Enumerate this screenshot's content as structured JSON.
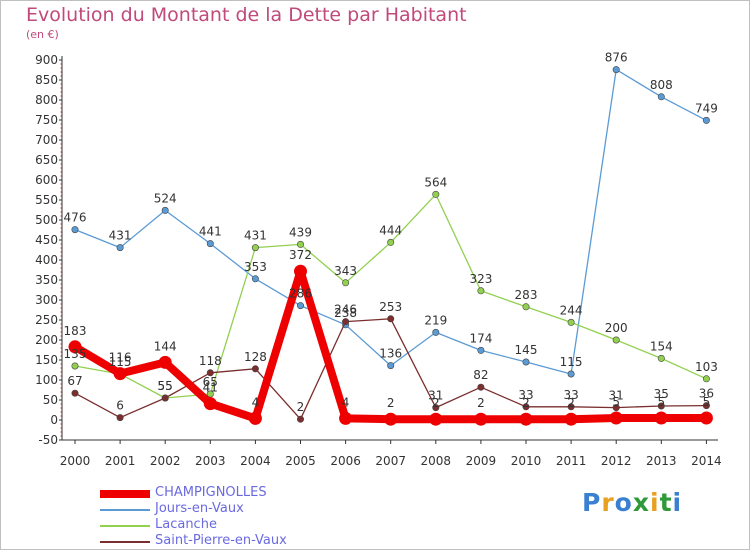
{
  "header": {
    "title": "Evolution du Montant de la Dette par Habitant",
    "subtitle": "(en €)"
  },
  "logo": {
    "text": "Proxiti",
    "colors": [
      "#3a7fd0",
      "#e8a020",
      "#3a7fd0",
      "#2f9a3a",
      "#e8a020",
      "#2f9a3a",
      "#3a7fd0"
    ]
  },
  "chart_data": {
    "type": "line",
    "categories": [
      "2000",
      "2001",
      "2002",
      "2003",
      "2004",
      "2005",
      "2006",
      "2007",
      "2008",
      "2009",
      "2010",
      "2011",
      "2012",
      "2013",
      "2014"
    ],
    "ylim": [
      -50,
      900
    ],
    "yticks": [
      -50,
      0,
      50,
      100,
      150,
      200,
      250,
      300,
      350,
      400,
      450,
      500,
      550,
      600,
      650,
      700,
      750,
      800,
      850,
      900
    ],
    "grid": "none",
    "legend_position": "bottom-left",
    "series": [
      {
        "name": "Jours-en-Vaux",
        "color": "#5b9bd5",
        "values": [
          476,
          431,
          524,
          441,
          353,
          286,
          238,
          136,
          219,
          174,
          145,
          115,
          876,
          808,
          749
        ]
      },
      {
        "name": "Lacanche",
        "color": "#92d050",
        "values": [
          135,
          115,
          55,
          65,
          431,
          439,
          343,
          444,
          564,
          323,
          283,
          244,
          200,
          154,
          103
        ]
      },
      {
        "name": "Saint-Pierre-en-Vaux",
        "color": "#7b2e2e",
        "values": [
          67,
          6,
          55,
          118,
          128,
          2,
          246,
          253,
          31,
          82,
          33,
          33,
          31,
          35,
          36
        ]
      },
      {
        "name": "CHAMPIGNOLLES",
        "color": "#ee0000",
        "bold": true,
        "values": [
          183,
          116,
          144,
          41,
          4,
          372,
          4,
          2,
          2,
          2,
          2,
          2,
          5,
          5,
          5
        ]
      }
    ]
  }
}
